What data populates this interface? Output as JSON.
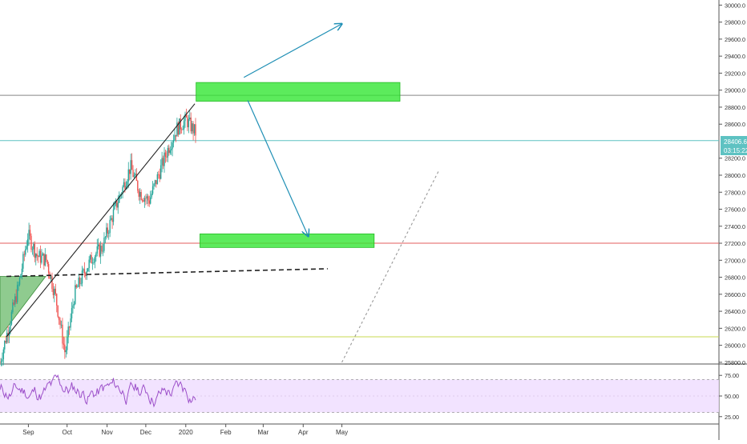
{
  "chart_data": [
    {
      "type": "candlestick",
      "y_axis_ticks": [
        "30000.0",
        "29800.0",
        "29600.0",
        "29400.0",
        "29200.0",
        "29000.0",
        "28800.0",
        "28600.0",
        "28200.0",
        "28000.0",
        "27800.0",
        "27600.0",
        "27400.0",
        "27200.0",
        "27000.0",
        "26800.0",
        "26600.0",
        "26400.0",
        "26200.0",
        "26000.0",
        "25800.0"
      ],
      "x_axis_ticks": [
        "Sep",
        "Oct",
        "Nov",
        "Dec",
        "2020",
        "Feb",
        "Mar",
        "Apr",
        "May"
      ],
      "ylim": [
        25780,
        30060
      ],
      "last_price_label": "28406.6",
      "countdown_label": "03:15:22",
      "price_path": [
        [
          25800,
          25900
        ],
        [
          26250,
          26000
        ],
        [
          26700,
          26550
        ],
        [
          27300,
          27250
        ],
        [
          27050,
          26900
        ],
        [
          27000,
          26850
        ],
        [
          26550,
          26400
        ],
        [
          25900,
          26100
        ],
        [
          26600,
          26750
        ],
        [
          26850,
          26950
        ],
        [
          27050,
          26900
        ],
        [
          27150,
          27350
        ],
        [
          27500,
          27600
        ],
        [
          27800,
          27950
        ],
        [
          28100,
          28000
        ],
        [
          27800,
          27500
        ],
        [
          27700,
          27900
        ],
        [
          28000,
          28200
        ],
        [
          28300,
          28450
        ],
        [
          28550,
          28700
        ],
        [
          28650,
          28550
        ],
        [
          28500,
          28300
        ]
      ],
      "trendlines": [
        {
          "from": [
            "2019-08-15",
            26100
          ],
          "to": [
            "2020-01-08",
            28840
          ],
          "color": "#222222",
          "style": "solid"
        },
        {
          "from": [
            "2019-08-15",
            26810
          ],
          "to": [
            "2020-04-20",
            26900
          ],
          "color": "#222222",
          "style": "dashed"
        },
        {
          "from": [
            "2020-05-01",
            25800
          ],
          "to": [
            "2020-07-15",
            28050
          ],
          "color": "#999999",
          "style": "dotted"
        }
      ],
      "zones": [
        {
          "price_low": 28870,
          "price_high": 29090,
          "from": "2020-01-09",
          "to": "2020-06-15",
          "color": "#33e633"
        },
        {
          "price_low": 27150,
          "price_high": 27310,
          "from": "2020-01-12",
          "to": "2020-05-26",
          "color": "#33e633"
        }
      ],
      "arrows": [
        {
          "from": [
            "2020-02-15",
            29150
          ],
          "to": [
            "2020-05-01",
            29780
          ],
          "color": "#1f8fb5"
        },
        {
          "from": [
            "2020-02-18",
            28880
          ],
          "to": [
            "2020-04-05",
            27280
          ],
          "color": "#1f8fb5"
        }
      ],
      "horizontal_levels": [
        {
          "price": 28940,
          "color": "#888888"
        },
        {
          "price": 28406.6,
          "color": "#5ec2c2"
        },
        {
          "price": 27200,
          "color": "#e35d5d"
        },
        {
          "price": 26100,
          "color": "#c8d850"
        }
      ],
      "triangle": {
        "color": "#6ab96a"
      }
    },
    {
      "type": "line",
      "indicator": "rsi",
      "y_axis_ticks": [
        "75.00",
        "50.00",
        "25.00"
      ],
      "ylim": [
        18,
        82
      ],
      "band": [
        30,
        70
      ],
      "line_color": "#9c4fc9",
      "band_color": "#efdcff"
    }
  ]
}
